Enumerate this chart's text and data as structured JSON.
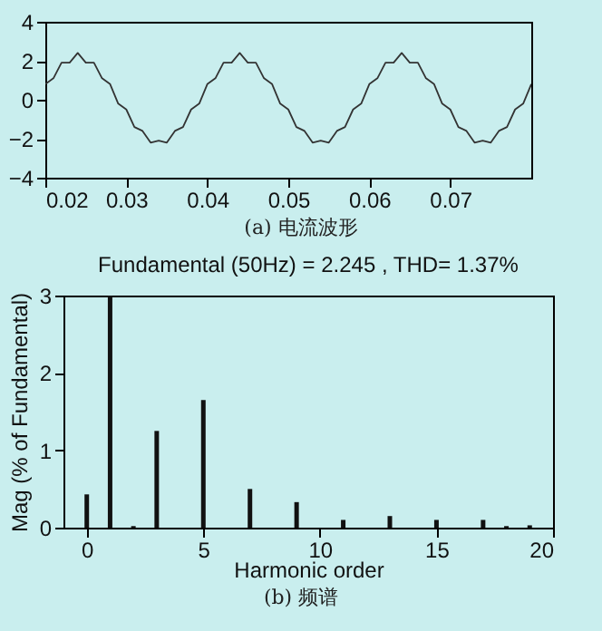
{
  "chart_data": [
    {
      "type": "line",
      "annotations": [
        "(a) 电流波形"
      ],
      "x": [
        0.02,
        0.021,
        0.022,
        0.023,
        0.024,
        0.025,
        0.026,
        0.027,
        0.028,
        0.029,
        0.03,
        0.031,
        0.032,
        0.033,
        0.034,
        0.035,
        0.036,
        0.037,
        0.038,
        0.039,
        0.04,
        0.041,
        0.042,
        0.043,
        0.044,
        0.045,
        0.046,
        0.047,
        0.048,
        0.049,
        0.05,
        0.051,
        0.052,
        0.053,
        0.054,
        0.055,
        0.056,
        0.057,
        0.058,
        0.059,
        0.06,
        0.061,
        0.062,
        0.063,
        0.064,
        0.065,
        0.066,
        0.067,
        0.068,
        0.069,
        0.07,
        0.071,
        0.072,
        0.073,
        0.074,
        0.075,
        0.076,
        0.077,
        0.078,
        0.079,
        0.08
      ],
      "values": [
        0.8,
        1.1,
        1.9,
        1.9,
        2.4,
        1.9,
        1.9,
        1.1,
        0.8,
        -0.2,
        -0.5,
        -1.4,
        -1.6,
        -2.2,
        -2.1,
        -2.2,
        -1.6,
        -1.4,
        -0.5,
        -0.2,
        0.8,
        1.1,
        1.9,
        1.9,
        2.4,
        1.9,
        1.9,
        1.1,
        0.8,
        -0.2,
        -0.5,
        -1.4,
        -1.6,
        -2.2,
        -2.1,
        -2.2,
        -1.6,
        -1.4,
        -0.5,
        -0.2,
        0.8,
        1.1,
        1.9,
        1.9,
        2.4,
        1.9,
        1.9,
        1.1,
        0.8,
        -0.2,
        -0.5,
        -1.4,
        -1.6,
        -2.2,
        -2.1,
        -2.2,
        -1.6,
        -1.4,
        -0.5,
        -0.2,
        0.8
      ],
      "color": "#333333",
      "xlim": [
        0.02,
        0.08
      ],
      "xticks": [
        0.02,
        0.03,
        0.04,
        0.05,
        0.06,
        0.07
      ],
      "ylim": [
        -4,
        4
      ],
      "yticks": [
        -4,
        -2,
        0,
        2,
        4
      ],
      "grid": false,
      "legend": false
    },
    {
      "type": "bar",
      "title": "Fundamental (50Hz) = 2.245 , THD= 1.37%",
      "xlabel": "Harmonic order",
      "ylabel": "Mag (% of Fundamental)",
      "annotations": [
        "(b) 频谱"
      ],
      "x": [
        0,
        1,
        2,
        3,
        5,
        7,
        9,
        11,
        13,
        15,
        17,
        18,
        19
      ],
      "values": [
        0.43,
        3,
        0.02,
        1.25,
        1.65,
        0.5,
        0.33,
        0.1,
        0.15,
        0.1,
        0.1,
        0.02,
        0.03
      ],
      "color": "#111111",
      "xlim": [
        -1,
        20
      ],
      "xticks": [
        0,
        5,
        10,
        15,
        20
      ],
      "ylim": [
        0,
        3
      ],
      "yticks": [
        0,
        1,
        2,
        3
      ],
      "grid": false,
      "legend": false
    }
  ]
}
